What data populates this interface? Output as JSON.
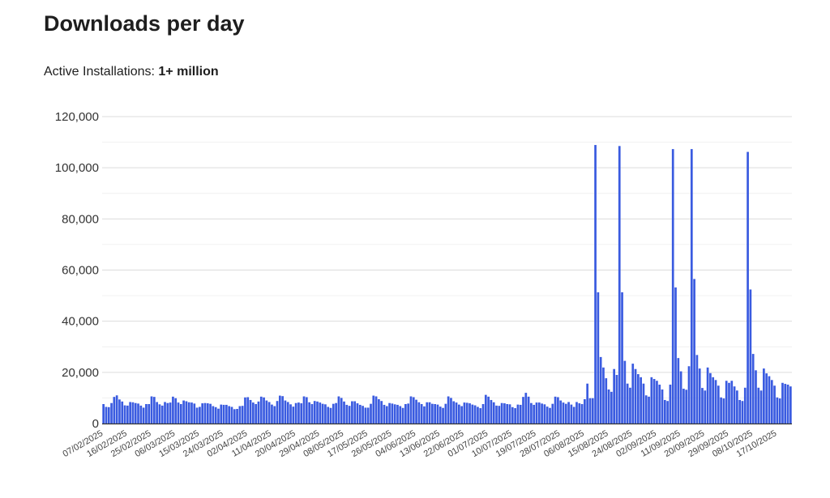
{
  "title": "Downloads per day",
  "installs": {
    "label": "Active Installations:",
    "value": "1+ million"
  },
  "chart_data": {
    "type": "bar",
    "color": "#3a5be0",
    "ylim": [
      0,
      120000
    ],
    "yticks": [
      "0",
      "20,000",
      "40,000",
      "60,000",
      "80,000",
      "100,000",
      "120,000"
    ],
    "ytick_values": [
      0,
      20000,
      40000,
      60000,
      80000,
      100000,
      120000
    ],
    "grid": true,
    "xtick_labels": [
      "07/02/2025",
      "16/02/2025",
      "25/02/2025",
      "06/03/2025",
      "15/03/2025",
      "24/03/2025",
      "02/04/2025",
      "11/04/2025",
      "20/04/2025",
      "29/04/2025",
      "08/05/2025",
      "17/05/2025",
      "26/05/2025",
      "04/06/2025",
      "13/06/2025",
      "22/06/2025",
      "01/07/2025",
      "10/07/2025",
      "19/07/2025",
      "28/07/2025",
      "06/08/2025",
      "15/08/2025",
      "24/08/2025",
      "02/09/2025",
      "11/09/2025",
      "20/09/2025",
      "29/09/2025",
      "08/10/2025",
      "17/10/2025"
    ],
    "values": [
      7600,
      6500,
      6400,
      8000,
      10400,
      11000,
      9400,
      8600,
      7100,
      7000,
      8400,
      8300,
      8000,
      7800,
      7000,
      6200,
      7600,
      7600,
      10600,
      10400,
      8400,
      7500,
      7000,
      8400,
      8000,
      8200,
      10500,
      9900,
      8200,
      7600,
      9000,
      8700,
      8300,
      8200,
      7800,
      6200,
      6500,
      7900,
      8000,
      7900,
      7700,
      6800,
      6400,
      5800,
      7400,
      7300,
      7300,
      6800,
      6500,
      5600,
      5700,
      6800,
      6900,
      10200,
      10300,
      9200,
      8200,
      7600,
      8600,
      10500,
      10200,
      9000,
      8400,
      7400,
      6800,
      8800,
      10900,
      10700,
      9000,
      8400,
      7500,
      6600,
      8000,
      8200,
      7900,
      10600,
      10300,
      8300,
      7600,
      8800,
      8600,
      8200,
      7700,
      7500,
      6500,
      6100,
      7700,
      8000,
      10600,
      10000,
      8600,
      7300,
      6900,
      8700,
      8700,
      7900,
      7300,
      6900,
      6200,
      6200,
      7700,
      10900,
      10600,
      9500,
      8800,
      7300,
      6800,
      8000,
      7800,
      7500,
      7300,
      6800,
      6100,
      7600,
      7800,
      10600,
      10300,
      9300,
      8300,
      7600,
      6700,
      8300,
      8300,
      7700,
      7600,
      7400,
      6600,
      6100,
      7700,
      10600,
      10000,
      8700,
      8200,
      7400,
      6800,
      8200,
      8100,
      7900,
      7400,
      7100,
      6500,
      6000,
      7600,
      11200,
      10500,
      9200,
      8300,
      7000,
      6900,
      8000,
      7900,
      7600,
      7500,
      6400,
      6000,
      7400,
      7300,
      10400,
      12000,
      10500,
      8000,
      7300,
      8200,
      8200,
      7800,
      7500,
      6600,
      6100,
      7700,
      10500,
      10300,
      9000,
      8200,
      7700,
      8400,
      7400,
      6500,
      8400,
      7900,
      7600,
      9500,
      15600,
      9900,
      9900,
      108900,
      51300,
      26000,
      21900,
      17700,
      13300,
      12400,
      21300,
      19000,
      108500,
      51300,
      24500,
      15600,
      14000,
      23400,
      21300,
      19300,
      18100,
      15600,
      11000,
      10500,
      18100,
      17400,
      16700,
      15200,
      13300,
      9200,
      8800,
      15200,
      107300,
      53200,
      25600,
      20400,
      13600,
      13200,
      22400,
      107300,
      56500,
      26800,
      21500,
      13900,
      12900,
      21900,
      19700,
      18100,
      17000,
      14800,
      10200,
      9800,
      16700,
      15900,
      16700,
      14500,
      12900,
      9200,
      8800,
      14000,
      106200,
      52400,
      27200,
      20800,
      14000,
      12900,
      21500,
      19600,
      18500,
      17000,
      14800,
      10200,
      9800,
      15900,
      15500,
      15200,
      14500
    ]
  }
}
